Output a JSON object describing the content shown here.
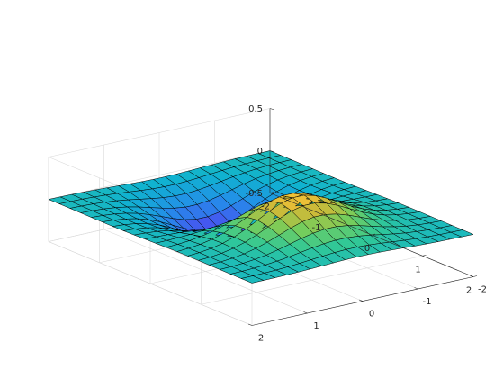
{
  "chart_data": {
    "type": "surface",
    "title": "",
    "xlabel": "",
    "ylabel": "",
    "zlabel": "",
    "function": "z = x * exp(-x^2 - y^2)",
    "x_range": [
      -2,
      2
    ],
    "y_range": [
      -2,
      2
    ],
    "grid_points": 20,
    "xlim": [
      -2,
      2
    ],
    "ylim": [
      -2,
      2
    ],
    "zlim": [
      -0.5,
      0.5
    ],
    "z_peak": {
      "x": 0.7,
      "y": 0,
      "z": 0.43
    },
    "z_trough": {
      "x": -0.7,
      "y": 0,
      "z": -0.43
    },
    "x_ticks": [
      "-2",
      "-1",
      "0",
      "1",
      "2"
    ],
    "y_ticks": [
      "-2",
      "-1",
      "0",
      "1",
      "2"
    ],
    "z_ticks": [
      "-0.5",
      "0",
      "0.5"
    ],
    "colormap": "parula",
    "edge_color": "#000000",
    "grid": true,
    "box": true
  }
}
